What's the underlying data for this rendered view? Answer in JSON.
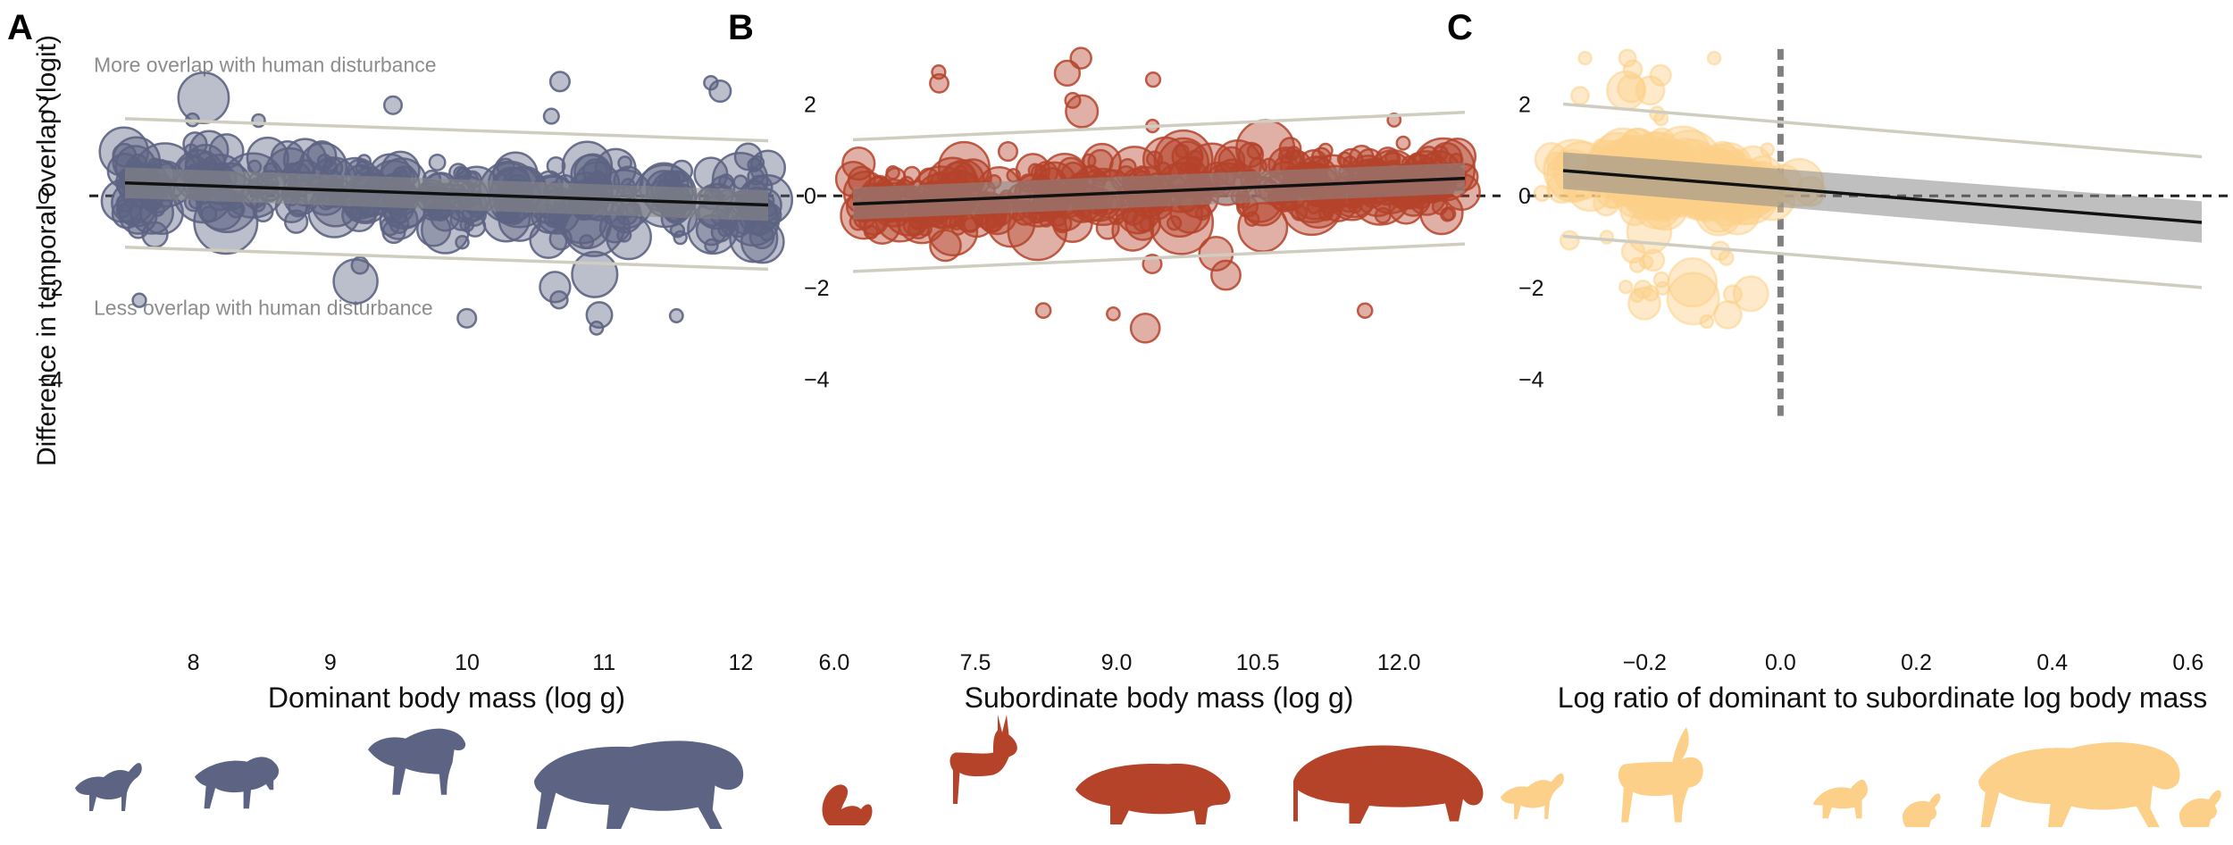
{
  "figure": {
    "ylabel": "Difference in temporal overlap (logit)",
    "colors": {
      "A": "#5d6382",
      "B": "#b5432a",
      "C": "#fcd089"
    }
  },
  "chart_data": [
    {
      "type": "scatter",
      "letter": "A",
      "xlabel": "Dominant body mass (log g)",
      "ylabel": "Difference in temporal overlap (logit)",
      "xticks": [
        "8",
        "9",
        "10",
        "11",
        "12"
      ],
      "yticks": [
        "2",
        "0",
        "−2",
        "−4"
      ],
      "xlim": [
        7.5,
        12.2
      ],
      "ylim": [
        -4.3,
        3.1
      ],
      "annotations": {
        "top": "More overlap with human disturbance",
        "bottom": "Less overlap with human disturbance"
      },
      "fit": {
        "x": [
          7.5,
          12.2
        ],
        "y": [
          0.28,
          -0.2
        ]
      },
      "ci": {
        "upper": [
          0.62,
          0.12
        ],
        "lower": [
          -0.05,
          -0.55
        ]
      },
      "prediction_interval": {
        "upper": [
          1.68,
          1.2
        ],
        "lower": [
          -1.12,
          -1.6
        ]
      },
      "vline": null,
      "silhouettes": [
        "jackal-silhouette",
        "wolf-silhouette",
        "hyena-silhouette",
        "tiger-silhouette"
      ]
    },
    {
      "type": "scatter",
      "letter": "B",
      "xlabel": "Subordinate body mass (log g)",
      "ylabel": "",
      "xticks": [
        "6.0",
        "7.5",
        "9.0",
        "10.5",
        "12.0"
      ],
      "yticks": [
        "2",
        "0",
        "−2",
        "−4"
      ],
      "xlim": [
        6.2,
        12.7
      ],
      "ylim": [
        -4.3,
        3.1
      ],
      "annotations": null,
      "fit": {
        "x": [
          6.2,
          12.7
        ],
        "y": [
          -0.18,
          0.38
        ]
      },
      "ci": {
        "upper": [
          0.18,
          0.72
        ],
        "lower": [
          -0.52,
          0.05
        ]
      },
      "prediction_interval": {
        "upper": [
          1.22,
          1.82
        ],
        "lower": [
          -1.65,
          -1.05
        ]
      },
      "vline": null,
      "silhouettes": [
        "squirrel-silhouette",
        "antelope-silhouette",
        "boar-silhouette",
        "tapir-silhouette"
      ]
    },
    {
      "type": "scatter",
      "letter": "C",
      "xlabel": "Log ratio of dominant to subordinate log body mass",
      "ylabel": "",
      "xticks": [
        "−0.2",
        "0.0",
        "0.2",
        "0.4",
        "0.6"
      ],
      "yticks": [
        "2",
        "0",
        "−2",
        "−4"
      ],
      "xlim": [
        -0.32,
        0.62
      ],
      "ylim": [
        -4.3,
        3.1
      ],
      "annotations": null,
      "fit": {
        "x": [
          -0.32,
          0.62
        ],
        "y": [
          0.55,
          -0.58
        ]
      },
      "ci": {
        "upper": [
          0.95,
          -0.12
        ],
        "lower": [
          0.15,
          -1.02
        ]
      },
      "prediction_interval": {
        "upper": [
          2.0,
          0.85
        ],
        "lower": [
          -0.88,
          -2.0
        ]
      },
      "vline": 0.0,
      "silhouettes": [
        "jackal-silhouette",
        "kudu-silhouette",
        "lynx-silhouette",
        "hare-silhouette",
        "tiger-silhouette",
        "cub-silhouette"
      ]
    }
  ]
}
